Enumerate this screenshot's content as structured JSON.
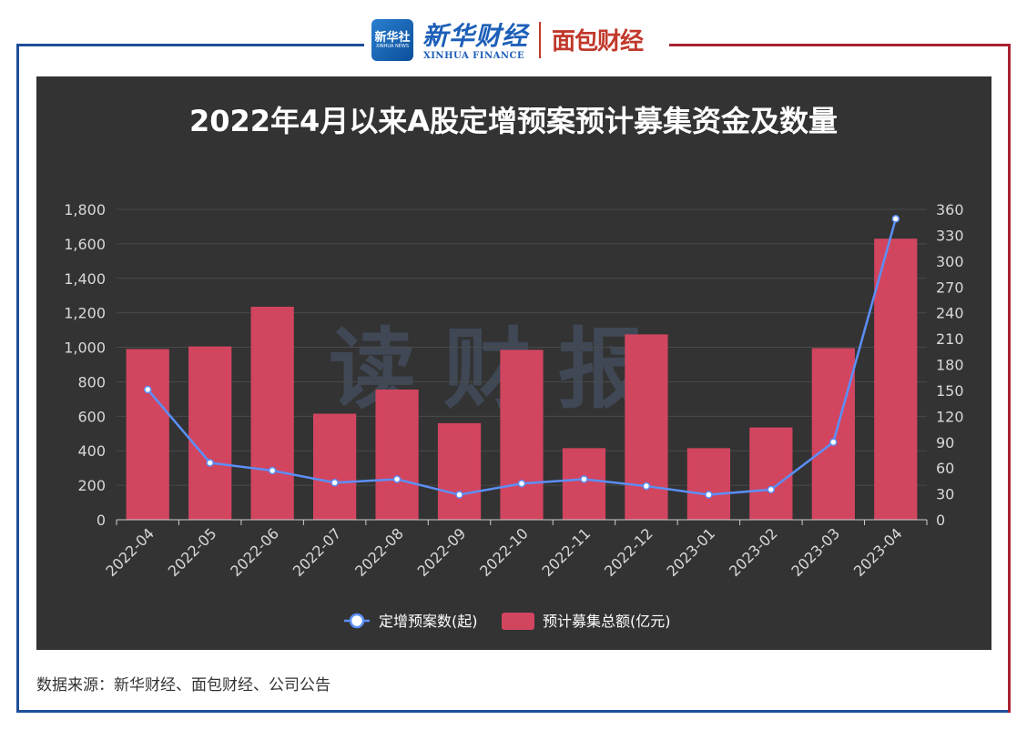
{
  "header": {
    "logo_square_text": "新华社",
    "logo_square_sub": "XINHUA NEWS",
    "xinhua_finance_cn": "新华财经",
    "xinhua_finance_en": "XINHUA FINANCE",
    "mianbao_logo": "面包财经"
  },
  "chart_data": {
    "type": "bar+line",
    "title": "2022年4月以来A股定增预案预计募集资金及数量",
    "watermark": "读财报",
    "categories": [
      "2022-04",
      "2022-05",
      "2022-06",
      "2022-07",
      "2022-08",
      "2022-09",
      "2022-10",
      "2022-11",
      "2022-12",
      "2023-01",
      "2023-02",
      "2023-03",
      "2023-04"
    ],
    "series": [
      {
        "name": "预计募集总额(亿元)",
        "type": "bar",
        "axis": "left",
        "values": [
          990,
          1005,
          1235,
          615,
          755,
          560,
          985,
          415,
          1075,
          415,
          535,
          995,
          1630
        ]
      },
      {
        "name": "定增预案数(起)",
        "type": "line",
        "axis": "right",
        "values": [
          151,
          66,
          57,
          43,
          47,
          29,
          42,
          47,
          39,
          29,
          35,
          90,
          349
        ]
      }
    ],
    "y_left": {
      "min": 0,
      "max": 1800,
      "step": 200,
      "tick_labels": [
        "0",
        "200",
        "400",
        "600",
        "800",
        "1,000",
        "1,200",
        "1,400",
        "1,600",
        "1,800"
      ]
    },
    "y_right": {
      "min": 0,
      "max": 360,
      "step": 30,
      "tick_labels": [
        "0",
        "30",
        "60",
        "90",
        "120",
        "150",
        "180",
        "210",
        "240",
        "270",
        "300",
        "330",
        "360"
      ]
    },
    "legend_position": "bottom-center",
    "colors": {
      "bar": "#d2455f",
      "line": "#5b8ff9",
      "background": "#333333",
      "text": "#ffffff",
      "axis_text": "#d8d8d8"
    }
  },
  "footer": {
    "source_text": "数据来源：新华财经、面包财经、公司公告"
  },
  "colors": {
    "frame_left": "#1f4e9b",
    "frame_right": "#a82232"
  }
}
